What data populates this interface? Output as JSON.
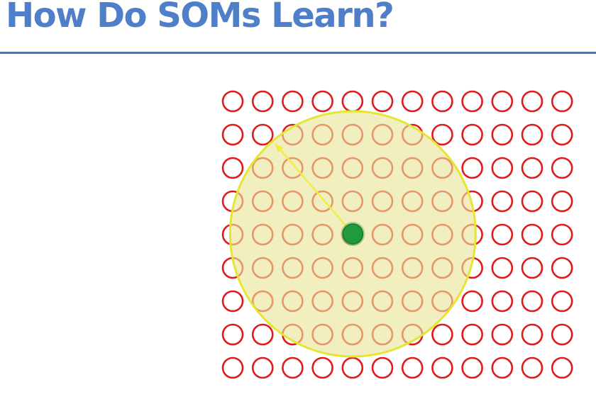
{
  "slide": {
    "title": "How Do SOMs Learn?"
  },
  "grid": {
    "rows": 9,
    "cols": 12,
    "node_color": "#e01b1b"
  },
  "bmu": {
    "row": 4,
    "col": 4,
    "color": "#1f9a3c"
  },
  "neighborhood": {
    "radius_in_node_spacings": 4.1,
    "fill_color": "#e8e39a",
    "stroke_color": "#e6e632",
    "arrow_color": "#f0ee45"
  }
}
